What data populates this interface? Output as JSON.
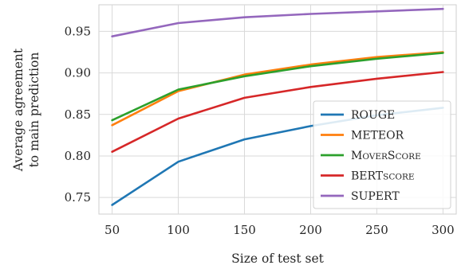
{
  "chart_data": {
    "type": "line",
    "title": "",
    "xlabel": "Size of test set",
    "ylabel": [
      "Average agreement",
      "to main prediction"
    ],
    "x": [
      50,
      100,
      150,
      200,
      250,
      300
    ],
    "xlim": [
      40,
      310
    ],
    "ylim": [
      0.73,
      0.982
    ],
    "xticks": [
      50,
      100,
      150,
      200,
      250,
      300
    ],
    "yticks": [
      0.75,
      0.8,
      0.85,
      0.9,
      0.95
    ],
    "ytick_labels": [
      "0.75",
      "0.80",
      "0.85",
      "0.90",
      "0.95"
    ],
    "grid": true,
    "legend_position": "lower-right",
    "series": [
      {
        "name": "ROUGE",
        "label_parts": [
          {
            "text": "ROUGE",
            "small": false
          }
        ],
        "color": "#1f77b4",
        "values": [
          0.741,
          0.793,
          0.82,
          0.836,
          0.849,
          0.858
        ]
      },
      {
        "name": "METEOR",
        "label_parts": [
          {
            "text": "METEOR",
            "small": false
          }
        ],
        "color": "#ff7f0e",
        "values": [
          0.837,
          0.878,
          0.898,
          0.91,
          0.919,
          0.925
        ]
      },
      {
        "name": "MoverScore",
        "label_parts": [
          {
            "text": "M",
            "small": false
          },
          {
            "text": "OVER",
            "small": true
          },
          {
            "text": "S",
            "small": false
          },
          {
            "text": "CORE",
            "small": true
          }
        ],
        "color": "#2ca02c",
        "values": [
          0.843,
          0.88,
          0.896,
          0.908,
          0.917,
          0.924
        ]
      },
      {
        "name": "BERTscore",
        "label_parts": [
          {
            "text": "BERT",
            "small": false
          },
          {
            "text": "SCORE",
            "small": true
          }
        ],
        "color": "#d62728",
        "values": [
          0.805,
          0.845,
          0.87,
          0.883,
          0.893,
          0.901
        ]
      },
      {
        "name": "SUPERT",
        "label_parts": [
          {
            "text": "SUPERT",
            "small": false
          }
        ],
        "color": "#9467bd",
        "values": [
          0.944,
          0.96,
          0.967,
          0.971,
          0.974,
          0.977
        ]
      }
    ]
  }
}
